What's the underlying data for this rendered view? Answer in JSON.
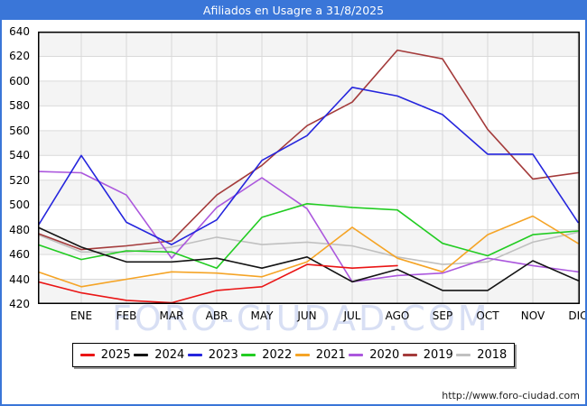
{
  "window": {
    "title": "Afiliados en Usagre a 31/8/2025"
  },
  "chart_data": {
    "type": "line",
    "title": "Afiliados en Usagre a 31/8/2025",
    "x_labels": [
      "ENE",
      "FEB",
      "MAR",
      "ABR",
      "MAY",
      "JUN",
      "JUL",
      "AGO",
      "SEP",
      "OCT",
      "NOV",
      "DIC"
    ],
    "x_layout_note": "each series has 13 points: the first is drawn at the y-axis edge before ENE; months sit on vertical gridlines",
    "y_axis": {
      "min": 420,
      "max": 640,
      "step": 20,
      "ticks": [
        "640",
        "620",
        "600",
        "580",
        "560",
        "540",
        "520",
        "500",
        "480",
        "460",
        "440",
        "420"
      ]
    },
    "grid": true,
    "legend_position": "bottom",
    "series": [
      {
        "name": "2025",
        "color": "#ea1515",
        "values": [
          438,
          429,
          423,
          421,
          431,
          434,
          452,
          449,
          451,
          null,
          null,
          null,
          null
        ]
      },
      {
        "name": "2024",
        "color": "#141414",
        "values": [
          482,
          466,
          454,
          454,
          457,
          449,
          458,
          438,
          448,
          431,
          431,
          455,
          439
        ]
      },
      {
        "name": "2023",
        "color": "#2525dd",
        "values": [
          483,
          540,
          486,
          468,
          488,
          536,
          556,
          595,
          588,
          573,
          541,
          541,
          486
        ]
      },
      {
        "name": "2022",
        "color": "#22cc22",
        "values": [
          468,
          456,
          463,
          462,
          449,
          490,
          501,
          498,
          496,
          469,
          459,
          476,
          479
        ]
      },
      {
        "name": "2021",
        "color": "#f5a426",
        "values": [
          446,
          434,
          440,
          446,
          445,
          442,
          454,
          482,
          457,
          446,
          476,
          491,
          469
        ]
      },
      {
        "name": "2020",
        "color": "#ab57dd",
        "values": [
          527,
          526,
          508,
          457,
          498,
          522,
          497,
          438,
          443,
          445,
          457,
          451,
          446
        ]
      },
      {
        "name": "2019",
        "color": "#a43b3b",
        "values": [
          477,
          464,
          467,
          471,
          508,
          532,
          564,
          583,
          625,
          618,
          561,
          521,
          526
        ]
      },
      {
        "name": "2018",
        "color": "#c0c0c0",
        "values": [
          476,
          462,
          462,
          466,
          474,
          468,
          470,
          467,
          458,
          452,
          454,
          470,
          478
        ]
      }
    ]
  },
  "watermark": {
    "text": "FORO-CIUDAD.COM"
  },
  "footer": {
    "url": "http://www.foro-ciudad.com"
  },
  "colors": {
    "title_bar": "#3a76d8",
    "frame": "#3a76d8",
    "grid": "#d9d9d9",
    "band": "#f4f4f4",
    "axis": "#000000"
  }
}
